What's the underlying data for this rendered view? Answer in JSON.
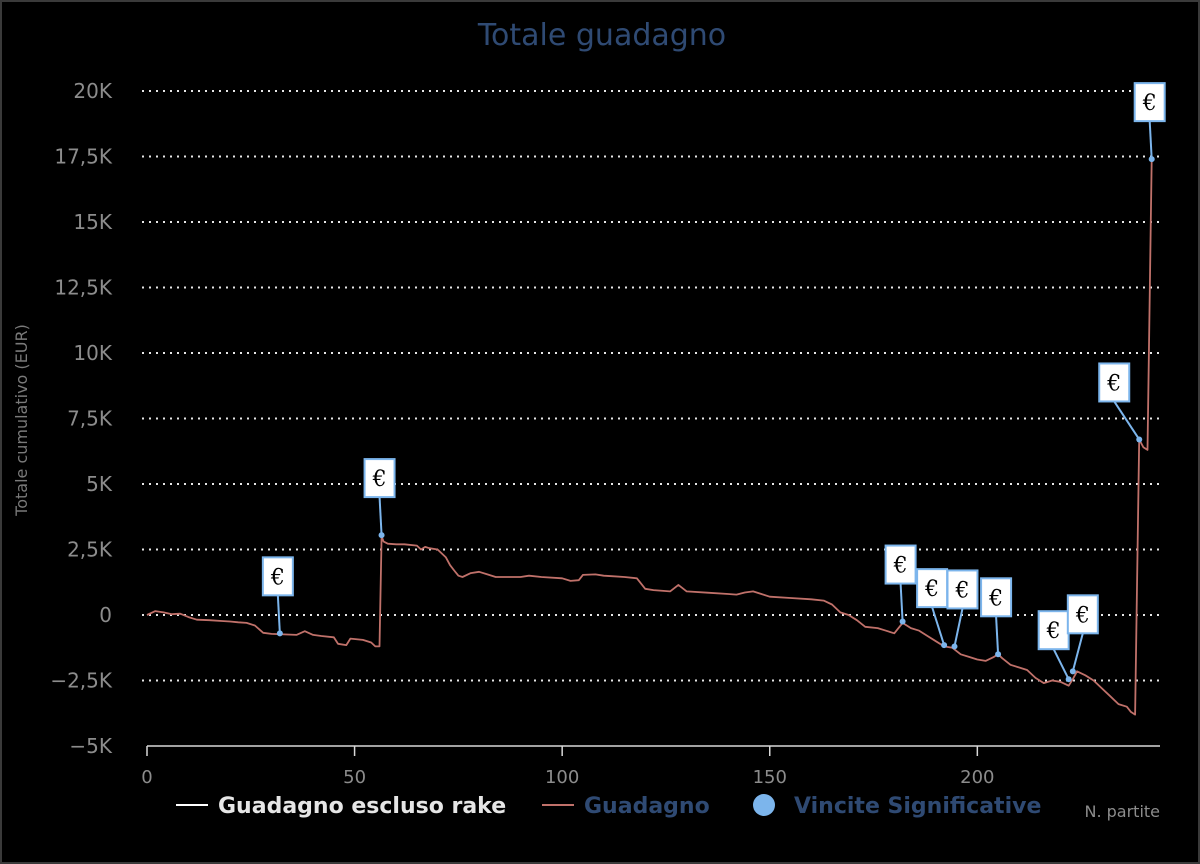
{
  "chart_data": {
    "type": "line",
    "title": "Totale guadagno",
    "xlabel": "N. partite",
    "ylabel": "Totale cumulativo (EUR)",
    "xlim": [
      0,
      244
    ],
    "ylim": [
      -5000,
      20000
    ],
    "x_ticks": [
      0,
      50,
      100,
      150,
      200
    ],
    "y_ticks": [
      {
        "value": 20000,
        "label": "20K"
      },
      {
        "value": 17500,
        "label": "17,5K"
      },
      {
        "value": 15000,
        "label": "15K"
      },
      {
        "value": 12500,
        "label": "12,5K"
      },
      {
        "value": 10000,
        "label": "10K"
      },
      {
        "value": 7500,
        "label": "7,5K"
      },
      {
        "value": 5000,
        "label": "5K"
      },
      {
        "value": 2500,
        "label": "2,5K"
      },
      {
        "value": 0,
        "label": "0"
      },
      {
        "value": -2500,
        "label": "−2,5K"
      },
      {
        "value": -5000,
        "label": "−5K"
      }
    ],
    "grid": true,
    "legend_position": "bottom",
    "colors": {
      "background": "#000000",
      "guadagno": "#c0716a",
      "escluso_rake": "#ffffff",
      "vincite": "#7cb5ec",
      "title": "#2f4a73",
      "legend_inactive": "#2f4a73"
    },
    "legend": [
      {
        "label": "Guadagno escluso rake",
        "symbol": "line",
        "color": "#ffffff"
      },
      {
        "label": "Guadagno",
        "symbol": "line",
        "color": "#c0716a"
      },
      {
        "label": "Vincite Significative",
        "symbol": "dot",
        "color": "#7cb5ec"
      }
    ],
    "series": [
      {
        "name": "Guadagno",
        "points": [
          [
            0,
            0
          ],
          [
            2,
            150
          ],
          [
            4,
            100
          ],
          [
            6,
            30
          ],
          [
            8,
            50
          ],
          [
            10,
            -80
          ],
          [
            12,
            -180
          ],
          [
            15,
            -200
          ],
          [
            18,
            -230
          ],
          [
            20,
            -250
          ],
          [
            22,
            -280
          ],
          [
            24,
            -300
          ],
          [
            26,
            -400
          ],
          [
            28,
            -680
          ],
          [
            30,
            -720
          ],
          [
            33,
            -740
          ],
          [
            36,
            -760
          ],
          [
            38,
            -620
          ],
          [
            40,
            -760
          ],
          [
            42,
            -800
          ],
          [
            45,
            -850
          ],
          [
            46,
            -1100
          ],
          [
            48,
            -1150
          ],
          [
            49,
            -900
          ],
          [
            52,
            -950
          ],
          [
            54,
            -1050
          ],
          [
            55,
            -1200
          ],
          [
            56,
            -1200
          ],
          [
            56.5,
            3000
          ],
          [
            57,
            2800
          ],
          [
            58,
            2720
          ],
          [
            60,
            2700
          ],
          [
            62,
            2700
          ],
          [
            65,
            2650
          ],
          [
            66,
            2500
          ],
          [
            67,
            2600
          ],
          [
            68,
            2550
          ],
          [
            70,
            2500
          ],
          [
            72,
            2200
          ],
          [
            73,
            1900
          ],
          [
            74,
            1700
          ],
          [
            75,
            1500
          ],
          [
            76,
            1450
          ],
          [
            78,
            1600
          ],
          [
            80,
            1650
          ],
          [
            82,
            1550
          ],
          [
            84,
            1450
          ],
          [
            90,
            1450
          ],
          [
            92,
            1500
          ],
          [
            95,
            1450
          ],
          [
            100,
            1400
          ],
          [
            102,
            1300
          ],
          [
            104,
            1330
          ],
          [
            105,
            1530
          ],
          [
            108,
            1550
          ],
          [
            110,
            1500
          ],
          [
            112,
            1480
          ],
          [
            115,
            1450
          ],
          [
            118,
            1400
          ],
          [
            120,
            1000
          ],
          [
            122,
            950
          ],
          [
            126,
            900
          ],
          [
            128,
            1150
          ],
          [
            130,
            900
          ],
          [
            135,
            850
          ],
          [
            140,
            800
          ],
          [
            142,
            780
          ],
          [
            144,
            860
          ],
          [
            146,
            900
          ],
          [
            148,
            800
          ],
          [
            150,
            700
          ],
          [
            155,
            650
          ],
          [
            160,
            600
          ],
          [
            163,
            550
          ],
          [
            165,
            400
          ],
          [
            167,
            100
          ],
          [
            169,
            0
          ],
          [
            171,
            -200
          ],
          [
            173,
            -450
          ],
          [
            176,
            -500
          ],
          [
            178,
            -600
          ],
          [
            180,
            -700
          ],
          [
            182,
            -300
          ],
          [
            184,
            -500
          ],
          [
            186,
            -600
          ],
          [
            188,
            -800
          ],
          [
            190,
            -1000
          ],
          [
            192,
            -1200
          ],
          [
            194,
            -1250
          ],
          [
            196,
            -1500
          ],
          [
            198,
            -1600
          ],
          [
            200,
            -1700
          ],
          [
            202,
            -1750
          ],
          [
            204,
            -1600
          ],
          [
            205,
            -1500
          ],
          [
            206,
            -1650
          ],
          [
            208,
            -1900
          ],
          [
            210,
            -2000
          ],
          [
            212,
            -2100
          ],
          [
            214,
            -2400
          ],
          [
            216,
            -2600
          ],
          [
            218,
            -2500
          ],
          [
            220,
            -2550
          ],
          [
            222,
            -2700
          ],
          [
            223,
            -2450
          ],
          [
            224,
            -2150
          ],
          [
            226,
            -2300
          ],
          [
            228,
            -2500
          ],
          [
            230,
            -2800
          ],
          [
            232,
            -3100
          ],
          [
            234,
            -3400
          ],
          [
            236,
            -3500
          ],
          [
            237,
            -3700
          ],
          [
            238,
            -3800
          ],
          [
            239,
            6700
          ],
          [
            240,
            6400
          ],
          [
            241,
            6300
          ],
          [
            242,
            17400
          ]
        ]
      },
      {
        "name": "Vincite Significative",
        "marker": "€",
        "points": [
          {
            "x": 32,
            "y": -700,
            "label": "€"
          },
          {
            "x": 56.5,
            "y": 3050,
            "label": "€"
          },
          {
            "x": 182,
            "y": -250,
            "label": "€"
          },
          {
            "x": 192,
            "y": -1150,
            "label": "€"
          },
          {
            "x": 194.5,
            "y": -1200,
            "label": "€"
          },
          {
            "x": 205,
            "y": -1500,
            "label": "€"
          },
          {
            "x": 222,
            "y": -2450,
            "label": "€"
          },
          {
            "x": 223,
            "y": -2150,
            "label": "€"
          },
          {
            "x": 239,
            "y": 6700,
            "label": "€"
          },
          {
            "x": 242,
            "y": 17400,
            "label": "€"
          }
        ]
      }
    ]
  }
}
